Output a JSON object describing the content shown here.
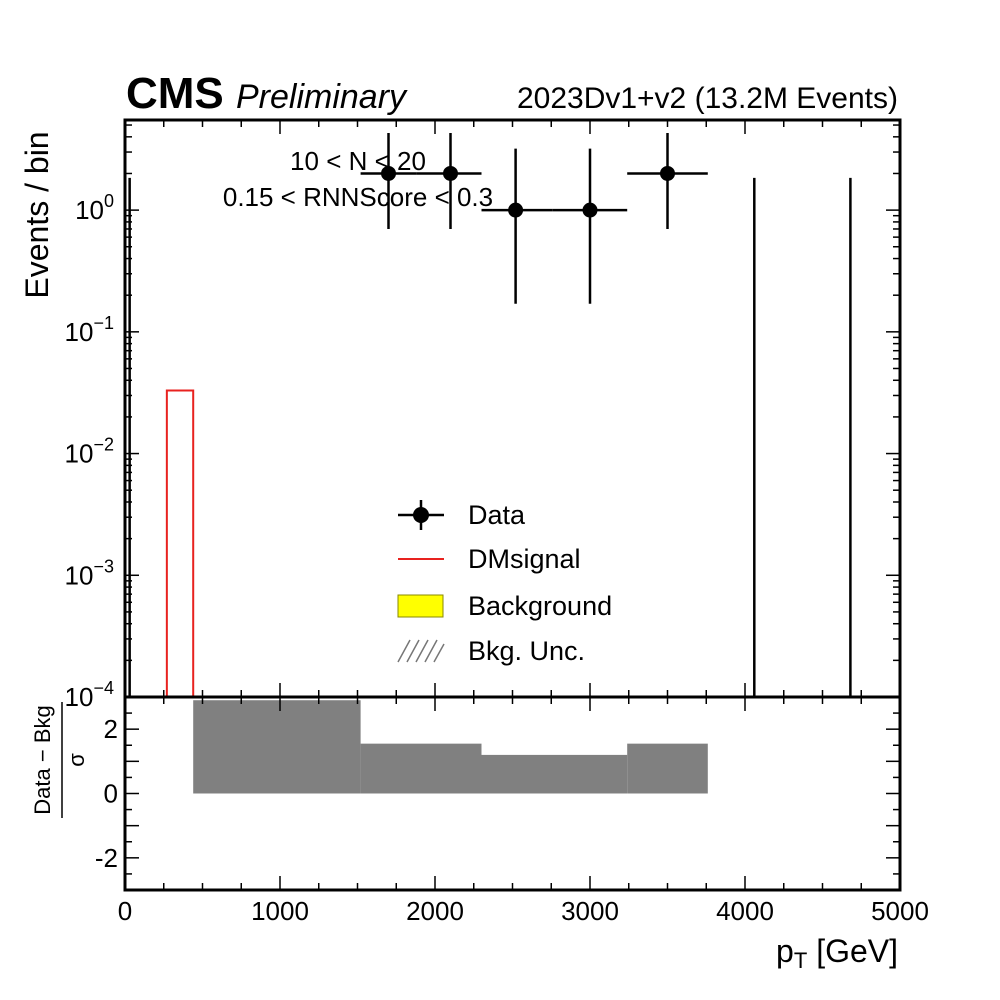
{
  "header": {
    "experiment": "CMS",
    "status": "Preliminary",
    "dataset": "2023Dv1+v2 (13.2M Events)"
  },
  "annotations": [
    "10 < N < 20",
    "0.15 < RNNScore < 0.3"
  ],
  "legend": {
    "placement": "center",
    "entries": [
      {
        "key": "data",
        "label": "Data"
      },
      {
        "key": "signal",
        "label": "DMsignal"
      },
      {
        "key": "background",
        "label": "Background"
      },
      {
        "key": "unc",
        "label": "Bkg. Unc."
      }
    ]
  },
  "colors": {
    "data": "#000000",
    "signal": "#e8221f",
    "background": "#ffff00",
    "ratio_fill": "#808080"
  },
  "chart_data": [
    {
      "type": "histogram",
      "panel": "main",
      "xlabel": "",
      "ylabel": "Events / bin",
      "xlim": [
        0,
        5000
      ],
      "ylim": [
        0.0001,
        5.5
      ],
      "yscale": "log",
      "y_ticks": [
        {
          "value": 1,
          "base": "10",
          "exp": "0"
        },
        {
          "value": 0.1,
          "base": "10",
          "exp": "−1"
        },
        {
          "value": 0.01,
          "base": "10",
          "exp": "−2"
        },
        {
          "value": 0.001,
          "base": "10",
          "exp": "−3"
        },
        {
          "value": 0.0001,
          "base": "10",
          "exp": "−4"
        }
      ],
      "data_points": [
        {
          "x": 1700,
          "xerr": [
            1520,
            1880
          ],
          "y": 2,
          "yerr": [
            0.7,
            4.3
          ]
        },
        {
          "x": 2100,
          "xerr": [
            1880,
            2300
          ],
          "y": 2,
          "yerr": [
            0.7,
            4.3
          ]
        },
        {
          "x": 2520,
          "xerr": [
            2300,
            2760
          ],
          "y": 1,
          "yerr": [
            0.17,
            3.2
          ]
        },
        {
          "x": 3000,
          "xerr": [
            2760,
            3240
          ],
          "y": 1,
          "yerr": [
            0.17,
            3.2
          ]
        },
        {
          "x": 3500,
          "xerr": [
            3240,
            3760
          ],
          "y": 2,
          "yerr": [
            0.7,
            4.3
          ]
        }
      ],
      "zero_count_error_bars": [
        {
          "x": 30,
          "y_high": 1.84
        },
        {
          "x": 4060,
          "y_high": 1.84
        },
        {
          "x": 4680,
          "y_high": 1.84
        }
      ],
      "signal_bins": [
        {
          "x_low": 270,
          "x_high": 440,
          "value": 0.033
        }
      ],
      "background_bins": []
    },
    {
      "type": "bar",
      "panel": "ratio",
      "xlabel": "p_T [GeV]",
      "ylabel": "(Data − Bkg) / σ",
      "xlim": [
        0,
        5000
      ],
      "ylim": [
        -3,
        3
      ],
      "x_ticks": [
        0,
        1000,
        2000,
        3000,
        4000,
        5000
      ],
      "y_ticks": [
        2,
        0,
        -2
      ],
      "bins": [
        {
          "x_low": 440,
          "x_high": 1520,
          "value": 2.9
        },
        {
          "x_low": 1520,
          "x_high": 2300,
          "value": 1.55
        },
        {
          "x_low": 2300,
          "x_high": 3240,
          "value": 1.2
        },
        {
          "x_low": 3240,
          "x_high": 3760,
          "value": 1.55
        }
      ]
    }
  ],
  "labels": {
    "x_axis_symbol": "p",
    "x_axis_subscript": "T",
    "x_axis_unit": " [GeV]",
    "y_main": "Events / bin",
    "ratio_numerator": "Data − Bkg",
    "ratio_denominator": "σ",
    "ratio_tick_labels": [
      "2",
      "0",
      "-2"
    ],
    "x_tick_labels": [
      "0",
      "1000",
      "2000",
      "3000",
      "4000",
      "5000"
    ]
  }
}
